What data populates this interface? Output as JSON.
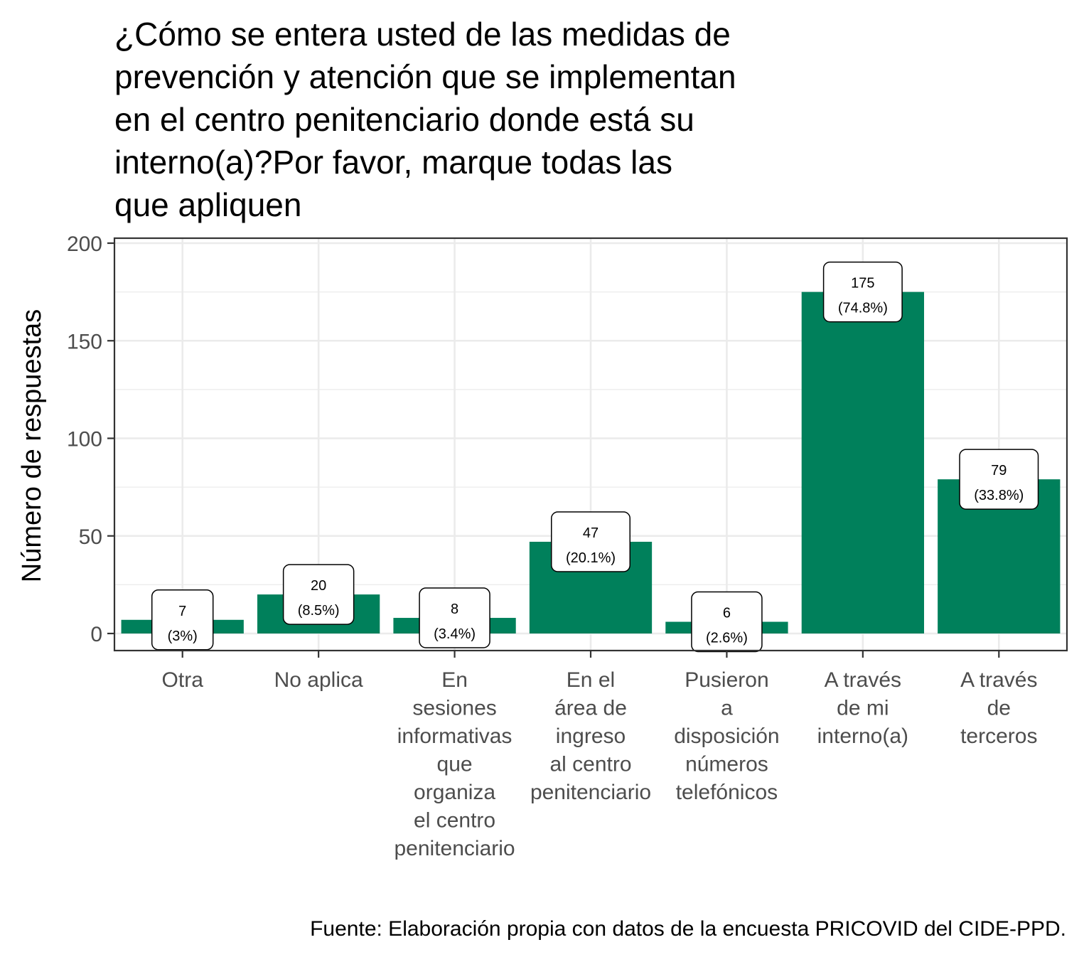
{
  "chart_data": {
    "type": "bar",
    "title_lines": [
      "¿Cómo se entera usted de las medidas de",
      "prevención y atención que se implementan",
      "en el centro penitenciario donde está su",
      "interno(a)?Por favor, marque todas las",
      "que apliquen"
    ],
    "ylabel": "Número de respuestas",
    "xlabel": "",
    "ylim": [
      0,
      200
    ],
    "yticks": [
      0,
      50,
      100,
      150,
      200
    ],
    "ytick_labels": [
      "0",
      "50",
      "100",
      "150",
      "200"
    ],
    "categories": [
      [
        "Otra"
      ],
      [
        "No aplica"
      ],
      [
        "En",
        "sesiones",
        "informativas",
        "que",
        "organiza",
        "el centro",
        "penitenciario"
      ],
      [
        "En el",
        "área de",
        "ingreso",
        "al centro",
        "penitenciario"
      ],
      [
        "Pusieron",
        "a",
        "disposición",
        "números",
        "telefónicos"
      ],
      [
        "A través",
        "de mi",
        "interno(a)"
      ],
      [
        "A través",
        "de",
        "terceros"
      ]
    ],
    "values": [
      7,
      20,
      8,
      47,
      6,
      175,
      79
    ],
    "percent_labels": [
      "(3%)",
      "(8.5%)",
      "(3.4%)",
      "(20.1%)",
      "(2.6%)",
      "(74.8%)",
      "(33.8%)"
    ],
    "bar_color": "#00805B",
    "grid": true,
    "caption": "Fuente: Elaboración propia con datos de la encuesta PRICOVID del CIDE-PPD."
  }
}
